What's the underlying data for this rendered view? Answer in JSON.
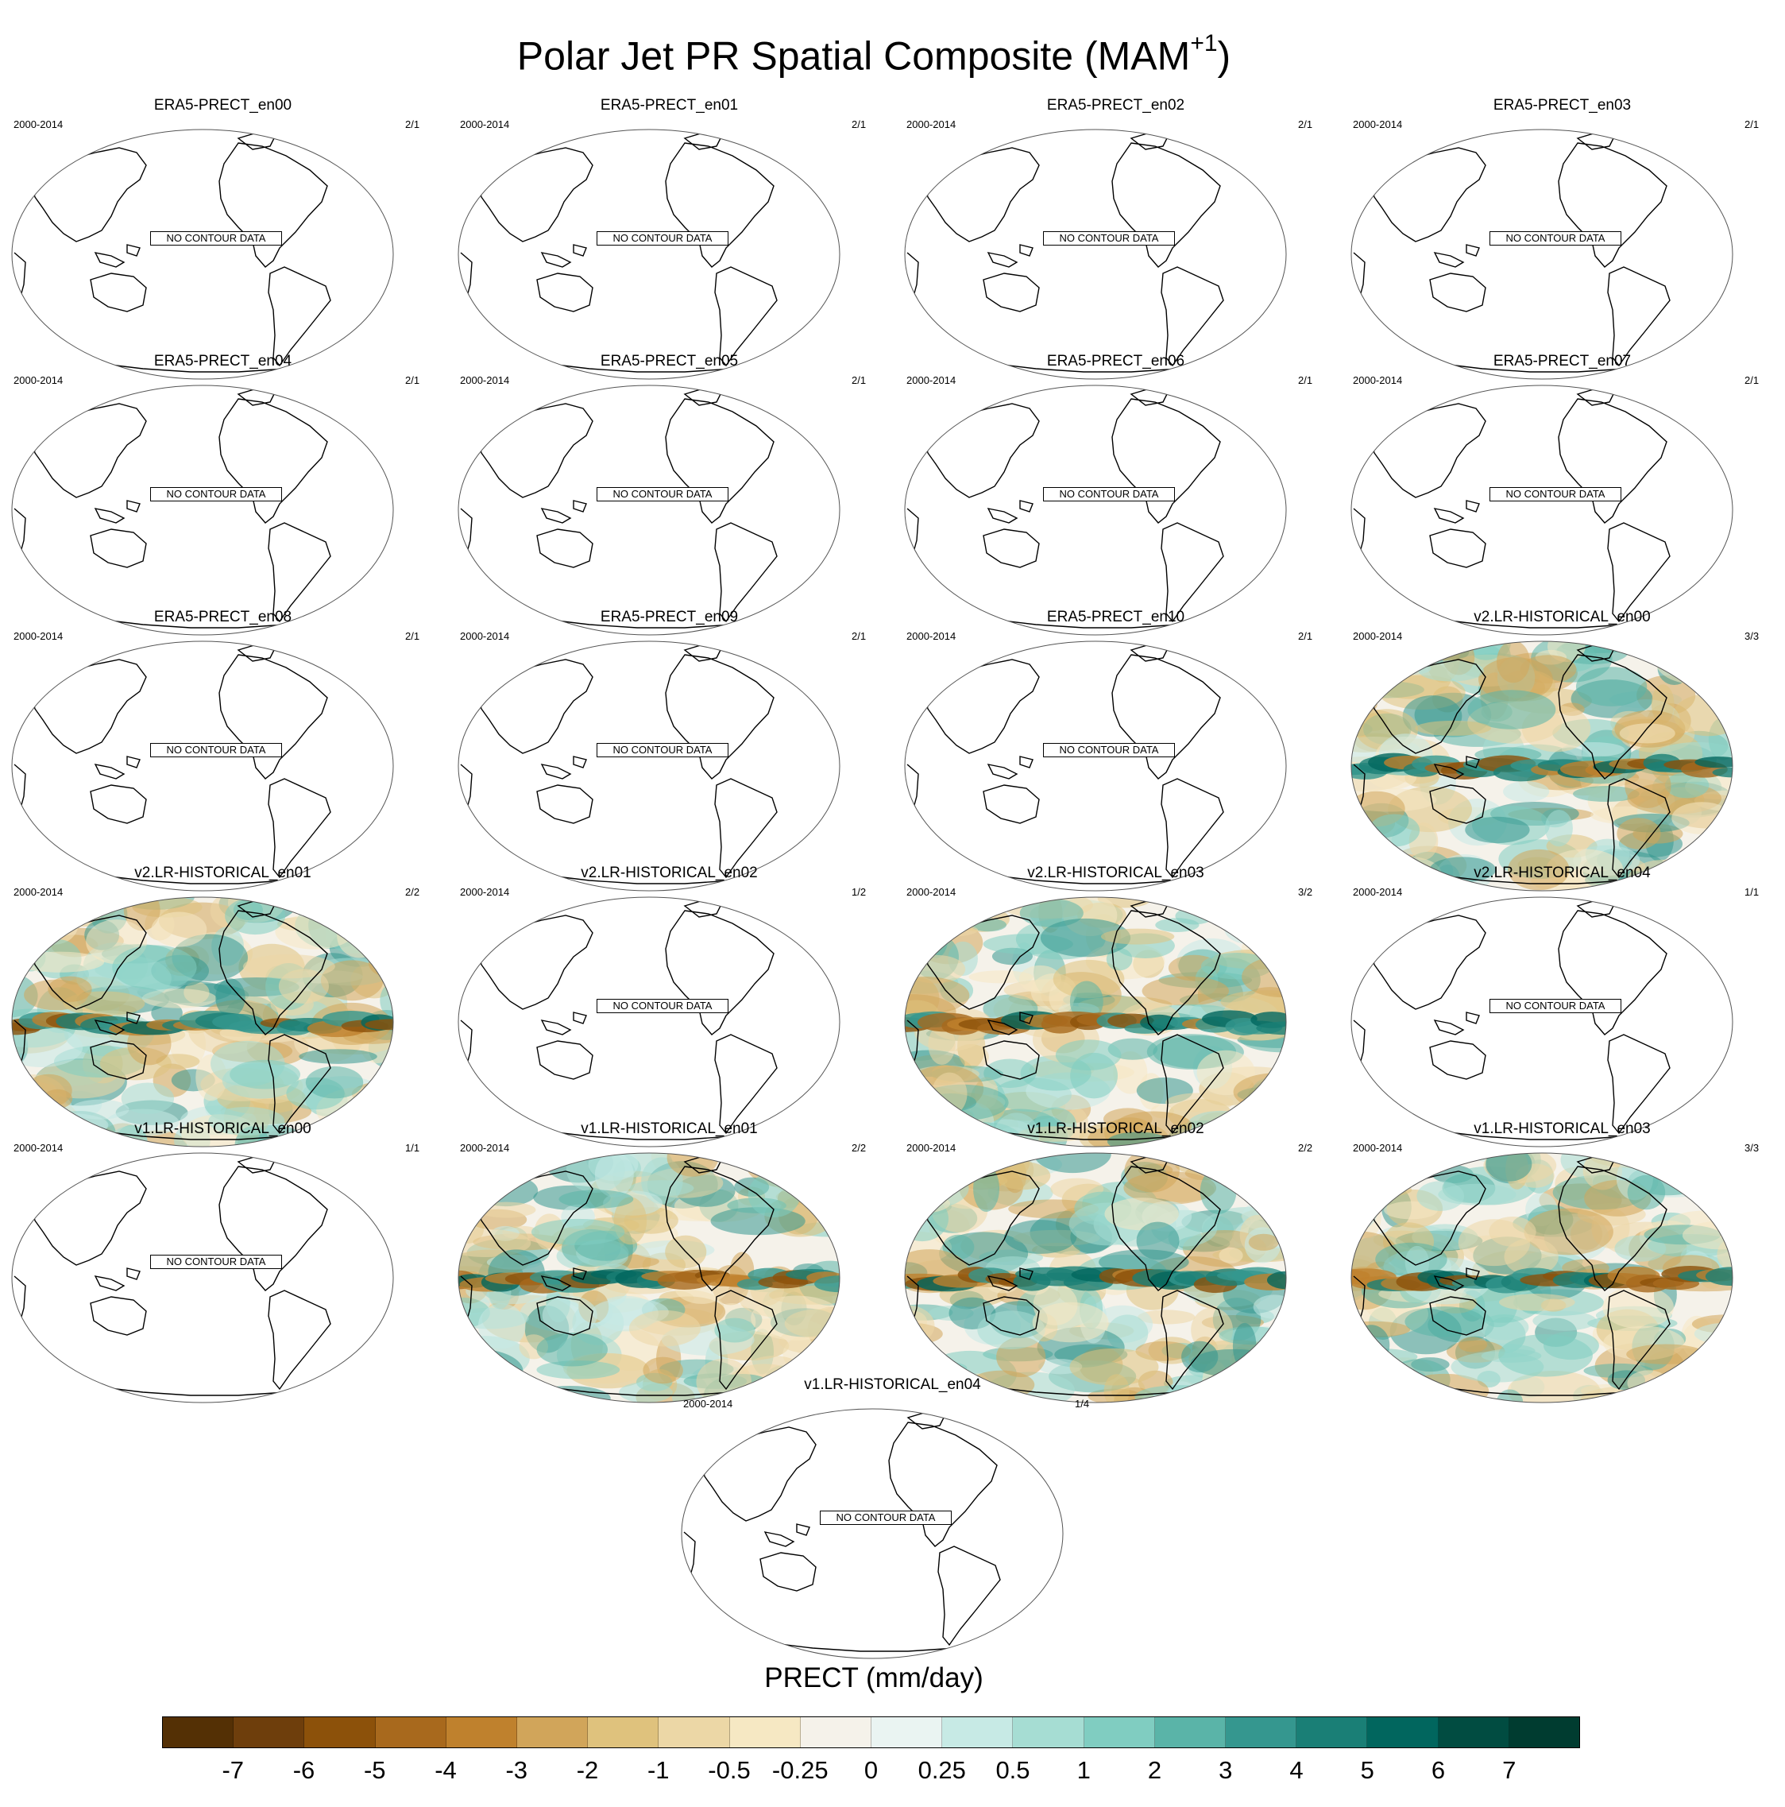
{
  "title": {
    "main": "Polar Jet PR Spatial Composite (MAM",
    "superscript": "+1",
    "suffix": ")"
  },
  "no_data_label": "NO CONTOUR DATA",
  "panels": [
    {
      "title": "ERA5-PRECT_en00",
      "period": "2000-2014",
      "count": "2/1",
      "filled": false
    },
    {
      "title": "ERA5-PRECT_en01",
      "period": "2000-2014",
      "count": "2/1",
      "filled": false
    },
    {
      "title": "ERA5-PRECT_en02",
      "period": "2000-2014",
      "count": "2/1",
      "filled": false
    },
    {
      "title": "ERA5-PRECT_en03",
      "period": "2000-2014",
      "count": "2/1",
      "filled": false
    },
    {
      "title": "ERA5-PRECT_en04",
      "period": "2000-2014",
      "count": "2/1",
      "filled": false
    },
    {
      "title": "ERA5-PRECT_en05",
      "period": "2000-2014",
      "count": "2/1",
      "filled": false
    },
    {
      "title": "ERA5-PRECT_en06",
      "period": "2000-2014",
      "count": "2/1",
      "filled": false
    },
    {
      "title": "ERA5-PRECT_en07",
      "period": "2000-2014",
      "count": "2/1",
      "filled": false
    },
    {
      "title": "ERA5-PRECT_en08",
      "period": "2000-2014",
      "count": "2/1",
      "filled": false
    },
    {
      "title": "ERA5-PRECT_en09",
      "period": "2000-2014",
      "count": "2/1",
      "filled": false
    },
    {
      "title": "ERA5-PRECT_en10",
      "period": "2000-2014",
      "count": "2/1",
      "filled": false
    },
    {
      "title": "v2.LR-HISTORICAL_en00",
      "period": "2000-2014",
      "count": "3/3",
      "filled": true
    },
    {
      "title": "v2.LR-HISTORICAL_en01",
      "period": "2000-2014",
      "count": "2/2",
      "filled": true
    },
    {
      "title": "v2.LR-HISTORICAL_en02",
      "period": "2000-2014",
      "count": "1/2",
      "filled": false
    },
    {
      "title": "v2.LR-HISTORICAL_en03",
      "period": "2000-2014",
      "count": "3/2",
      "filled": true
    },
    {
      "title": "v2.LR-HISTORICAL_en04",
      "period": "2000-2014",
      "count": "1/1",
      "filled": false
    },
    {
      "title": "v1.LR-HISTORICAL_en00",
      "period": "2000-2014",
      "count": "1/1",
      "filled": false
    },
    {
      "title": "v1.LR-HISTORICAL_en01",
      "period": "2000-2014",
      "count": "2/2",
      "filled": true
    },
    {
      "title": "v1.LR-HISTORICAL_en02",
      "period": "2000-2014",
      "count": "2/2",
      "filled": true
    },
    {
      "title": "v1.LR-HISTORICAL_en03",
      "period": "2000-2014",
      "count": "3/3",
      "filled": true
    },
    {
      "title": "v1.LR-HISTORICAL_en04",
      "period": "2000-2014",
      "count": "1/4",
      "filled": false
    }
  ],
  "colorbar": {
    "title": "PRECT (mm/day)",
    "labels": [
      "-7",
      "-6",
      "-5",
      "-4",
      "-3",
      "-2",
      "-1",
      "-0.5",
      "-0.25",
      "0",
      "0.25",
      "0.5",
      "1",
      "2",
      "3",
      "4",
      "5",
      "6",
      "7"
    ],
    "colors": [
      "#543005",
      "#6e3e0c",
      "#8c510a",
      "#a8691d",
      "#bf812d",
      "#d1a55a",
      "#dfc27d",
      "#ecd7a6",
      "#f6e8c3",
      "#f5f2ea",
      "#eaf4f2",
      "#c7eae5",
      "#a6ddd3",
      "#80cdc1",
      "#5ab4a8",
      "#35978f",
      "#1a7f76",
      "#01665e",
      "#014c41",
      "#003c30"
    ]
  }
}
